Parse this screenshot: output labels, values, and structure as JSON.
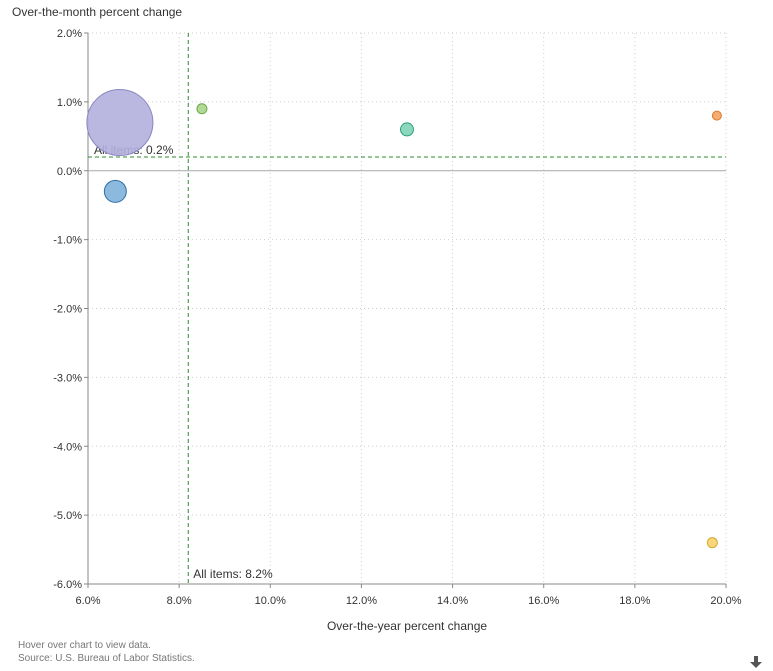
{
  "chart_data": {
    "type": "scatter",
    "title": "",
    "ylabel": "Over-the-month percent change",
    "xlabel": "Over-the-year percent change",
    "xlim": [
      6.0,
      20.0
    ],
    "ylim": [
      -6.0,
      2.0
    ],
    "x_ticks": [
      "6.0%",
      "8.0%",
      "10.0%",
      "12.0%",
      "14.0%",
      "16.0%",
      "18.0%",
      "20.0%"
    ],
    "y_ticks": [
      "2.0%",
      "1.0%",
      "0.0%",
      "-1.0%",
      "-2.0%",
      "-3.0%",
      "-4.0%",
      "-5.0%",
      "-6.0%"
    ],
    "grid": true,
    "reference_lines": {
      "x": {
        "value": 8.2,
        "label": "All items: 8.2%"
      },
      "y": {
        "value": 0.2,
        "label": "All items: 0.2%"
      }
    },
    "points": [
      {
        "x": 6.7,
        "y": 0.7,
        "size": 33,
        "color": "#b3b0dd",
        "stroke": "#8a86c2"
      },
      {
        "x": 6.6,
        "y": -0.3,
        "size": 11,
        "color": "#7fb3dc",
        "stroke": "#2f6fa5"
      },
      {
        "x": 8.5,
        "y": 0.9,
        "size": 5,
        "color": "#a9d68a",
        "stroke": "#6aa84f"
      },
      {
        "x": 13.0,
        "y": 0.6,
        "size": 6.5,
        "color": "#7fd4b7",
        "stroke": "#2e9e7c"
      },
      {
        "x": 19.8,
        "y": 0.8,
        "size": 4.5,
        "color": "#f4a462",
        "stroke": "#d9782d"
      },
      {
        "x": 19.7,
        "y": -5.4,
        "size": 5,
        "color": "#f7d36b",
        "stroke": "#d9a82d"
      }
    ]
  },
  "footer": {
    "hover_note": "Hover over chart to view data.",
    "source": "Source: U.S. Bureau of Labor Statistics."
  },
  "icons": {
    "download": "download-icon"
  }
}
